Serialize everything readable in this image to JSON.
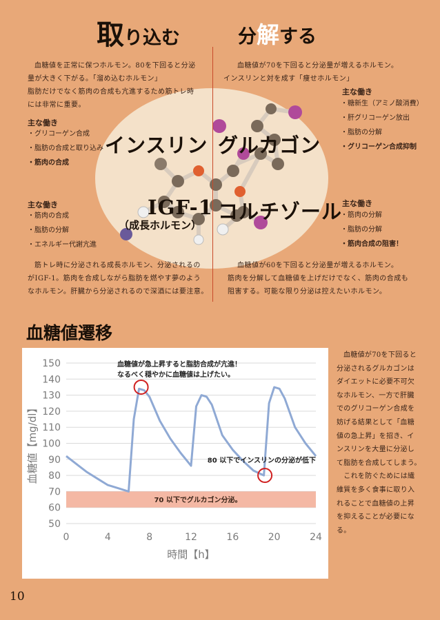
{
  "left": {
    "title_big": "取",
    "title_rest": "り込む",
    "desc": [
      "血糖値を正常に保つホルモン。80を下回ると分泌",
      "量が大きく下がる。「溜め込むホルモン」",
      "脂肪だけでなく筋肉の合成も亢進するため筋トレ時",
      "には非常に重要。"
    ],
    "insulin_head": "主な働き",
    "insulin_items": [
      "・グリコーゲン合成",
      "・脂肪の合成と取り込み",
      "・筋肉の合成"
    ],
    "igf_head": "主な働き",
    "igf_items": [
      "・筋肉の合成",
      "・脂肪の分解",
      "・エネルギー代謝亢進"
    ],
    "igf_desc": [
      "筋トレ時に分泌される成長ホルモン、分泌されるの",
      "がIGF-1。筋肉を合成しながら脂肪を燃やす夢のよう",
      "なホルモン。肝臓から分泌されるので深酒には要注意。"
    ]
  },
  "right": {
    "title_big": "分",
    "title_accent": "解",
    "title_rest": "する",
    "desc": [
      "血糖値が70を下回ると分泌量が増えるホルモン。",
      "インスリンと対を成す「痩せホルモン」"
    ],
    "glucagon_head": "主な働き",
    "glucagon_items": [
      "・糖新生（アミノ酸消費）",
      "・肝グリコーゲン放出",
      "・脂肪の分解",
      "・グリコーゲン合成抑制"
    ],
    "cortisol_head": "主な働き",
    "cortisol_items": [
      "・筋肉の分解",
      "・脂肪の分解",
      "・筋肉合成の阻害！"
    ],
    "cortisol_desc": [
      "血糖値が60を下回ると分泌量が増えるホルモン。",
      "筋肉を分解して血糖値を上げだけでなく、筋肉の合成も",
      "阻害する。可能な限り分泌は控えたいホルモン。"
    ]
  },
  "hormones": {
    "insulin": "インスリン",
    "glucagon": "グルカゴン",
    "igf": "IGF-1",
    "igf_sub": "（成長ホルモン）",
    "cortisol": "コルチゾール"
  },
  "section_title": "血糖値遷移",
  "side_text": [
    "血糖値が70を下回ると",
    "分泌されるグルカゴンは",
    "ダイエットに必要不可欠",
    "なホルモン、一方で肝臓",
    "でのグリコーゲン合成を",
    "妨げる結果として「血糖",
    "値の急上昇」を招き、イ",
    "ンスリンを大量に分泌し",
    "て脂肪を合成してしまう。",
    "　これを防ぐためには繊",
    "維質を多く食事に取り入",
    "れることで血糖値の上昇",
    "を抑えることが必要にな",
    "る。"
  ],
  "page_number": "10",
  "chart_data": {
    "type": "line",
    "title": "",
    "xlabel": "時間【h】",
    "ylabel": "血糖値【mg/dl】",
    "xlim": [
      0,
      24
    ],
    "ylim": [
      50,
      150
    ],
    "xticks": [
      0,
      4,
      8,
      12,
      16,
      20,
      24
    ],
    "yticks": [
      50,
      60,
      70,
      80,
      90,
      100,
      110,
      120,
      130,
      140,
      150
    ],
    "grid": true,
    "legend": "none",
    "band": {
      "from": 60,
      "to": 70,
      "label": "70 以下でグルカゴン分泌。",
      "color": "#f4b8a4"
    },
    "line_color": "#8fa9d4",
    "series": [
      {
        "x": [
          0,
          1,
          2,
          3,
          4,
          5,
          6,
          6,
          6.5,
          7,
          7.5,
          8,
          9,
          10,
          11,
          12,
          12,
          12.5,
          13,
          13.5,
          14,
          15,
          16,
          17,
          18,
          19,
          19,
          19.5,
          20,
          20.5,
          21,
          22,
          23,
          24
        ],
        "y": [
          92,
          87,
          82,
          78,
          74,
          72,
          70,
          70,
          115,
          134,
          133,
          129,
          114,
          103,
          94,
          86,
          86,
          123,
          130,
          129,
          124,
          105,
          96,
          89,
          83,
          80,
          80,
          125,
          135,
          134,
          128,
          110,
          100,
          92
        ]
      }
    ],
    "annotations": [
      {
        "text": "血糖値が急上昇すると脂肪合成が亢進！",
        "x": 7.2,
        "y": 135
      },
      {
        "text": "なるべく穏やかに血糖値は上げたい。",
        "x": 7.2,
        "y": 135
      },
      {
        "text": "80 以下でインスリンの分泌が低下",
        "x": 19.1,
        "y": 80
      }
    ]
  }
}
